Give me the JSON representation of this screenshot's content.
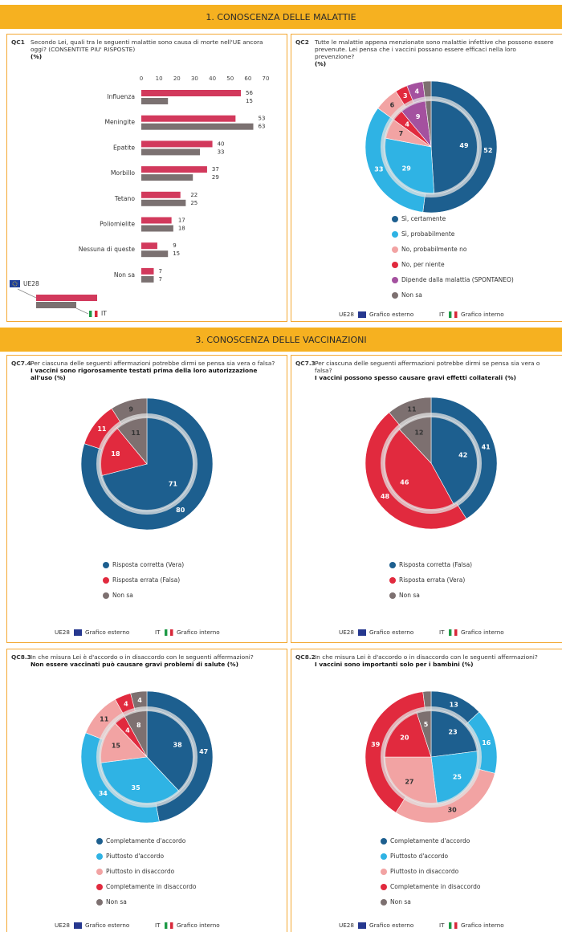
{
  "sections": [
    {
      "title": "1. CONOSCENZA DELLE MALATTIE"
    },
    {
      "title": "3. CONOSCENZA DELLE VACCINAZIONI"
    }
  ],
  "chart_data": [
    {
      "type": "bar",
      "code": "QC1",
      "question": "Secondo Lei, quali tra le seguenti malattie sono causa di morte nell'UE ancora oggi? (CONSENTITE PIU' RISPOSTE)",
      "unit": "(%)",
      "categories": [
        "Influenza",
        "Meningite",
        "Epatite",
        "Morbillo",
        "Tetano",
        "Poliomielite",
        "Nessuna di queste",
        "Non sa"
      ],
      "series": [
        {
          "name": "UE28",
          "color": "#d2395c",
          "values": [
            56,
            53,
            40,
            37,
            22,
            17,
            9,
            7
          ]
        },
        {
          "name": "IT",
          "color": "#7b7171",
          "values": [
            15,
            63,
            33,
            29,
            25,
            18,
            15,
            7
          ]
        }
      ],
      "xlim": [
        0,
        70
      ],
      "xticks": [
        0,
        10,
        20,
        30,
        40,
        50,
        60,
        70
      ],
      "grid": false
    },
    {
      "type": "pie",
      "code": "QC2",
      "question": "Tutte le malattie appena menzionate sono malattie infettive che possono essere prevenute. Lei pensa che i vaccini possano essere efficaci nella loro prevenzione?",
      "unit": "(%)",
      "categories": [
        "Sì, certamente",
        "Sì, probabilmente",
        "No, probabilmente no",
        "No, per niente",
        "Dipende dalla malattia (SPONTANEO)",
        "Non sa"
      ],
      "colors": [
        "#1d5f8f",
        "#2fb3e4",
        "#f2a3a3",
        "#e12a3e",
        "#a4519f",
        "#7d7070"
      ],
      "series": [
        {
          "name": "UE28",
          "ring": "outer",
          "values": [
            52,
            33,
            6,
            3,
            4,
            2
          ]
        },
        {
          "name": "IT",
          "ring": "inner",
          "values": [
            49,
            29,
            7,
            4,
            9,
            2
          ]
        }
      ],
      "footer": {
        "outer_text": "Grafico esterno",
        "inner_text": "Grafico interno"
      }
    },
    {
      "type": "pie",
      "code": "QC7.4",
      "question": "Per ciascuna delle seguenti affermazioni potrebbe dirmi se pensa sia vera o falsa?",
      "subtitle": "I vaccini sono rigorosamente testati prima della loro autorizzazione all'uso (%)",
      "categories": [
        "Risposta corretta (Vera)",
        "Risposta errata (Falsa)",
        "Non sa"
      ],
      "colors": [
        "#1d5f8f",
        "#e12a3e",
        "#7d7070"
      ],
      "series": [
        {
          "name": "UE28",
          "ring": "outer",
          "values": [
            80,
            11,
            9
          ]
        },
        {
          "name": "IT",
          "ring": "inner",
          "values": [
            71,
            18,
            11
          ]
        }
      ],
      "footer": {
        "outer_text": "Grafico esterno",
        "inner_text": "Grafico interno"
      }
    },
    {
      "type": "pie",
      "code": "QC7.3",
      "question": "Per ciascuna delle seguenti affermazioni potrebbe dirmi se pensa sia vera o falsa?",
      "subtitle": "I vaccini possono spesso causare gravi effetti collaterali (%)",
      "categories": [
        "Risposta corretta (Falsa)",
        "Risposta errata (Vera)",
        "Non sa"
      ],
      "colors": [
        "#1d5f8f",
        "#e12a3e",
        "#7d7070"
      ],
      "series": [
        {
          "name": "UE28",
          "ring": "outer",
          "values": [
            41,
            48,
            11
          ]
        },
        {
          "name": "IT",
          "ring": "inner",
          "values": [
            42,
            46,
            12
          ]
        }
      ],
      "footer": {
        "outer_text": "Grafico esterno",
        "inner_text": "Grafico interno"
      }
    },
    {
      "type": "pie",
      "code": "QC8.3",
      "question": "In che misura Lei è d'accordo o in disaccordo con le seguenti affermazioni?",
      "subtitle": "Non essere vaccinati può causare gravi problemi di salute (%)",
      "categories": [
        "Completamente d'accordo",
        "Piuttosto d'accordo",
        "Piuttosto in disaccordo",
        "Completamente in disaccordo",
        "Non sa"
      ],
      "colors": [
        "#1d5f8f",
        "#2fb3e4",
        "#f2a3a3",
        "#e12a3e",
        "#7d7070"
      ],
      "series": [
        {
          "name": "UE28",
          "ring": "outer",
          "values": [
            47,
            34,
            11,
            4,
            4
          ]
        },
        {
          "name": "IT",
          "ring": "inner",
          "values": [
            38,
            35,
            15,
            4,
            8
          ]
        }
      ],
      "footer": {
        "outer_text": "Grafico esterno",
        "inner_text": "Grafico interno"
      }
    },
    {
      "type": "pie",
      "code": "QC8.2",
      "question": "In che misura Lei è d'accordo o in disaccordo con le seguenti affermazioni?",
      "subtitle": "I vaccini sono importanti solo per i bambini (%)",
      "categories": [
        "Completamente d'accordo",
        "Piuttosto d'accordo",
        "Piuttosto in disaccordo",
        "Completamente in disaccordo",
        "Non sa"
      ],
      "colors": [
        "#1d5f8f",
        "#2fb3e4",
        "#f2a3a3",
        "#e12a3e",
        "#7d7070"
      ],
      "series": [
        {
          "name": "UE28",
          "ring": "outer",
          "values": [
            13,
            16,
            30,
            39,
            2
          ]
        },
        {
          "name": "IT",
          "ring": "inner",
          "values": [
            23,
            25,
            27,
            20,
            5
          ]
        }
      ],
      "footer": {
        "outer_text": "Grafico esterno",
        "inner_text": "Grafico interno"
      }
    }
  ]
}
